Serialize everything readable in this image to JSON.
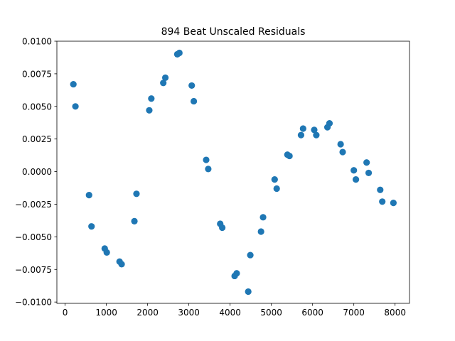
{
  "chart_data": {
    "type": "scatter",
    "title": "894 Beat Unscaled Residuals",
    "xlabel": "",
    "ylabel": "",
    "xlim": [
      -200,
      8350
    ],
    "ylim": [
      -0.0101,
      0.01
    ],
    "xticks": [
      0,
      1000,
      2000,
      3000,
      4000,
      5000,
      6000,
      7000,
      8000
    ],
    "xtick_labels": [
      "0",
      "1000",
      "2000",
      "3000",
      "4000",
      "5000",
      "6000",
      "7000",
      "8000"
    ],
    "yticks": [
      -0.01,
      -0.0075,
      -0.005,
      -0.0025,
      0.0,
      0.0025,
      0.005,
      0.0075,
      0.01
    ],
    "ytick_labels": [
      "−0.0100",
      "−0.0075",
      "−0.0050",
      "−0.0025",
      "0.0000",
      "0.0025",
      "0.0050",
      "0.0075",
      "0.0100"
    ],
    "grid": false,
    "marker_color": "#1f77b4",
    "points": [
      {
        "x": 200,
        "y": 0.0067
      },
      {
        "x": 250,
        "y": 0.005
      },
      {
        "x": 580,
        "y": -0.0018
      },
      {
        "x": 640,
        "y": -0.0042
      },
      {
        "x": 960,
        "y": -0.0059
      },
      {
        "x": 1010,
        "y": -0.0062
      },
      {
        "x": 1320,
        "y": -0.0069
      },
      {
        "x": 1370,
        "y": -0.0071
      },
      {
        "x": 1680,
        "y": -0.0038
      },
      {
        "x": 1730,
        "y": -0.0017
      },
      {
        "x": 2040,
        "y": 0.0047
      },
      {
        "x": 2090,
        "y": 0.0056
      },
      {
        "x": 2380,
        "y": 0.0068
      },
      {
        "x": 2430,
        "y": 0.0072
      },
      {
        "x": 2720,
        "y": 0.009
      },
      {
        "x": 2770,
        "y": 0.0091
      },
      {
        "x": 3070,
        "y": 0.0066
      },
      {
        "x": 3120,
        "y": 0.0054
      },
      {
        "x": 3420,
        "y": 0.0009
      },
      {
        "x": 3470,
        "y": 0.0002
      },
      {
        "x": 3760,
        "y": -0.004
      },
      {
        "x": 3810,
        "y": -0.0043
      },
      {
        "x": 4110,
        "y": -0.008
      },
      {
        "x": 4160,
        "y": -0.0078
      },
      {
        "x": 4440,
        "y": -0.0092
      },
      {
        "x": 4490,
        "y": -0.0064
      },
      {
        "x": 4750,
        "y": -0.0046
      },
      {
        "x": 4800,
        "y": -0.0035
      },
      {
        "x": 5080,
        "y": -0.0006
      },
      {
        "x": 5130,
        "y": -0.0013
      },
      {
        "x": 5390,
        "y": 0.0013
      },
      {
        "x": 5440,
        "y": 0.0012
      },
      {
        "x": 5720,
        "y": 0.0028
      },
      {
        "x": 5770,
        "y": 0.0033
      },
      {
        "x": 6040,
        "y": 0.0032
      },
      {
        "x": 6090,
        "y": 0.0028
      },
      {
        "x": 6360,
        "y": 0.0034
      },
      {
        "x": 6410,
        "y": 0.0037
      },
      {
        "x": 6680,
        "y": 0.0021
      },
      {
        "x": 6730,
        "y": 0.0015
      },
      {
        "x": 7000,
        "y": 0.0001
      },
      {
        "x": 7050,
        "y": -0.0006
      },
      {
        "x": 7310,
        "y": 0.0007
      },
      {
        "x": 7360,
        "y": -0.0001
      },
      {
        "x": 7640,
        "y": -0.0014
      },
      {
        "x": 7690,
        "y": -0.0023
      },
      {
        "x": 7960,
        "y": -0.0024
      }
    ]
  }
}
